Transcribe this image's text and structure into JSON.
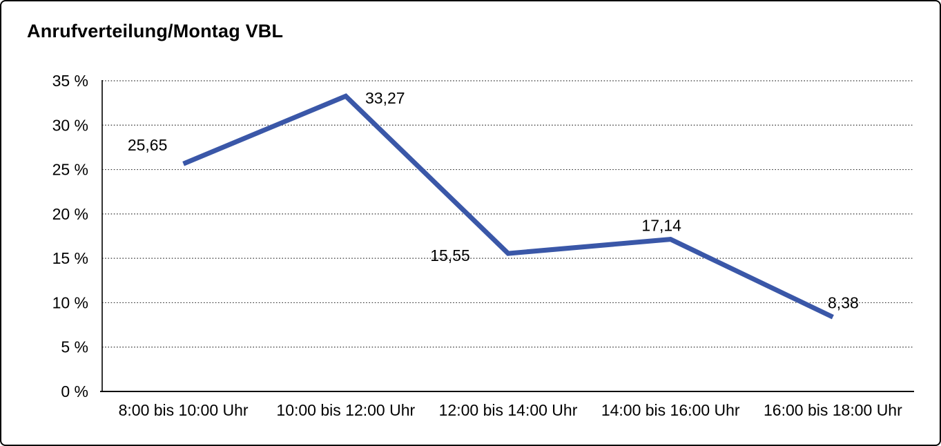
{
  "title": "Anrufverteilung/Montag VBL",
  "chart_data": {
    "type": "line",
    "title": "Anrufverteilung/Montag VBL",
    "categories": [
      "8:00 bis 10:00 Uhr",
      "10:00 bis 12:00 Uhr",
      "12:00 bis 14:00 Uhr",
      "14:00 bis 16:00 Uhr",
      "16:00 bis 18:00 Uhr"
    ],
    "values": [
      25.65,
      33.27,
      15.55,
      17.14,
      8.38
    ],
    "value_labels": [
      "25,65",
      "33,27",
      "15,55",
      "17,14",
      "8,38"
    ],
    "ylim": [
      0,
      35
    ],
    "ytick_step": 5,
    "ytick_labels": [
      "0 %",
      "5 %",
      "10 %",
      "15 %",
      "20 %",
      "25 %",
      "30 %",
      "35 %"
    ],
    "xlabel": "",
    "ylabel": "",
    "legend": "none",
    "grid": "horizontal-dotted",
    "line_color": "#3A57A8",
    "grid_color": "#333333",
    "axis_color": "#000000",
    "text_color": "#000000",
    "background_color": "#ffffff"
  }
}
